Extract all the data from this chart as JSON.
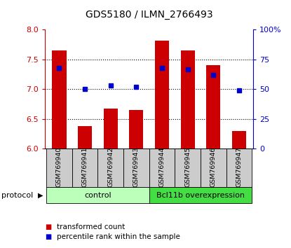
{
  "title": "GDS5180 / ILMN_2766493",
  "samples": [
    "GSM769940",
    "GSM769941",
    "GSM769942",
    "GSM769943",
    "GSM769944",
    "GSM769945",
    "GSM769946",
    "GSM769947"
  ],
  "transformed_count": [
    7.65,
    6.38,
    6.67,
    6.65,
    7.82,
    7.65,
    7.4,
    6.3
  ],
  "percentile_rank": [
    68,
    50,
    53,
    52,
    68,
    67,
    62,
    49
  ],
  "ylim_left": [
    6.0,
    8.0
  ],
  "ylim_right": [
    0,
    100
  ],
  "yticks_left": [
    6.0,
    6.5,
    7.0,
    7.5,
    8.0
  ],
  "yticks_right": [
    0,
    25,
    50,
    75,
    100
  ],
  "ytick_labels_right": [
    "0",
    "25",
    "50",
    "75",
    "100%"
  ],
  "bar_color": "#cc0000",
  "dot_color": "#0000cc",
  "bar_width": 0.55,
  "baseline": 6.0,
  "groups": [
    {
      "label": "control",
      "x_start": -0.5,
      "x_end": 3.5,
      "color": "#bbffbb"
    },
    {
      "label": "Bcl11b overexpression",
      "x_start": 3.5,
      "x_end": 7.5,
      "color": "#44dd44"
    }
  ],
  "group_row_label": "protocol",
  "sample_box_color": "#cccccc",
  "legend_bar_label": "transformed count",
  "legend_dot_label": "percentile rank within the sample",
  "grid_values": [
    6.5,
    7.0,
    7.5
  ],
  "xlim": [
    -0.55,
    7.55
  ]
}
